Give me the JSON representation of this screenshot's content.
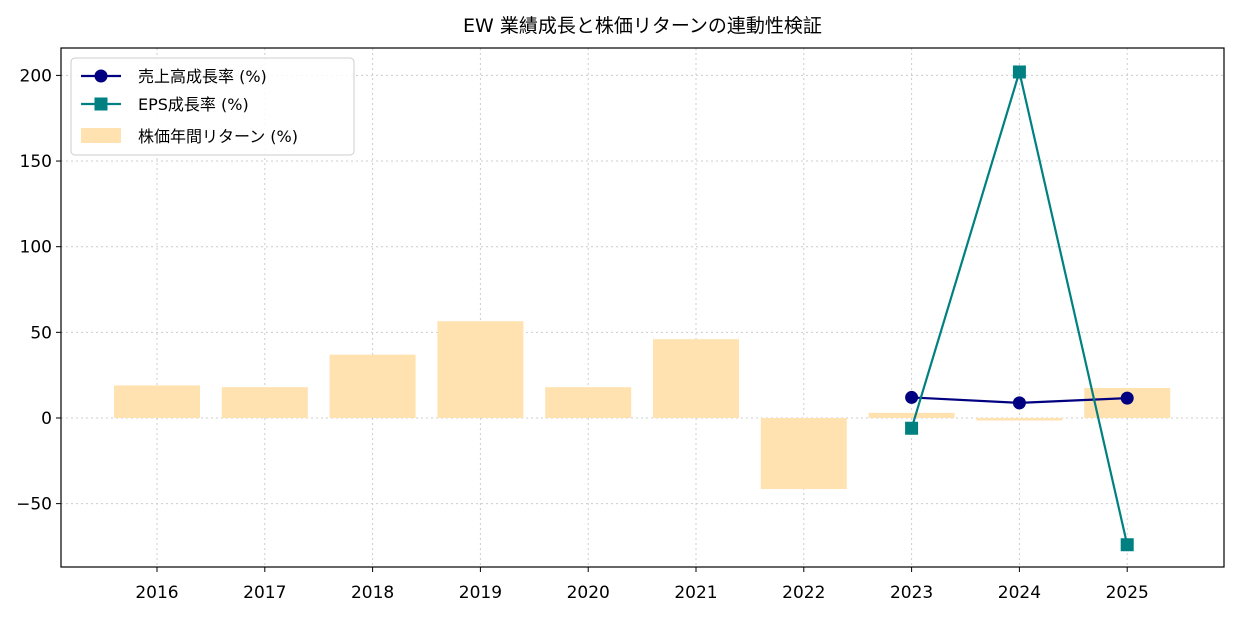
{
  "chart_data": {
    "type": "bar",
    "title": "EW 業績成長と株価リターンの連動性検証",
    "xlabel": "",
    "ylabel": "",
    "categories": [
      "2016",
      "2017",
      "2018",
      "2019",
      "2020",
      "2021",
      "2022",
      "2023",
      "2024",
      "2025"
    ],
    "ylim": [
      -87,
      216
    ],
    "yticks": [
      -50,
      0,
      50,
      100,
      150,
      200
    ],
    "grid": true,
    "legend_position": "top-left",
    "series": [
      {
        "name": "売上高成長率 (%)",
        "type": "line",
        "marker": "circle",
        "color": "#000080",
        "values": [
          null,
          null,
          null,
          null,
          null,
          null,
          null,
          12.0,
          8.8,
          11.6
        ]
      },
      {
        "name": "EPS成長率 (%)",
        "type": "line",
        "marker": "square",
        "color": "#008080",
        "values": [
          null,
          null,
          null,
          null,
          null,
          null,
          null,
          -6.0,
          202.0,
          -74.0
        ]
      },
      {
        "name": "株価年間リターン (%)",
        "type": "bar",
        "color": "#ffe2b0",
        "values": [
          19.0,
          18.0,
          37.0,
          56.5,
          18.0,
          46.0,
          -41.5,
          3.0,
          -1.5,
          17.5
        ]
      }
    ]
  }
}
